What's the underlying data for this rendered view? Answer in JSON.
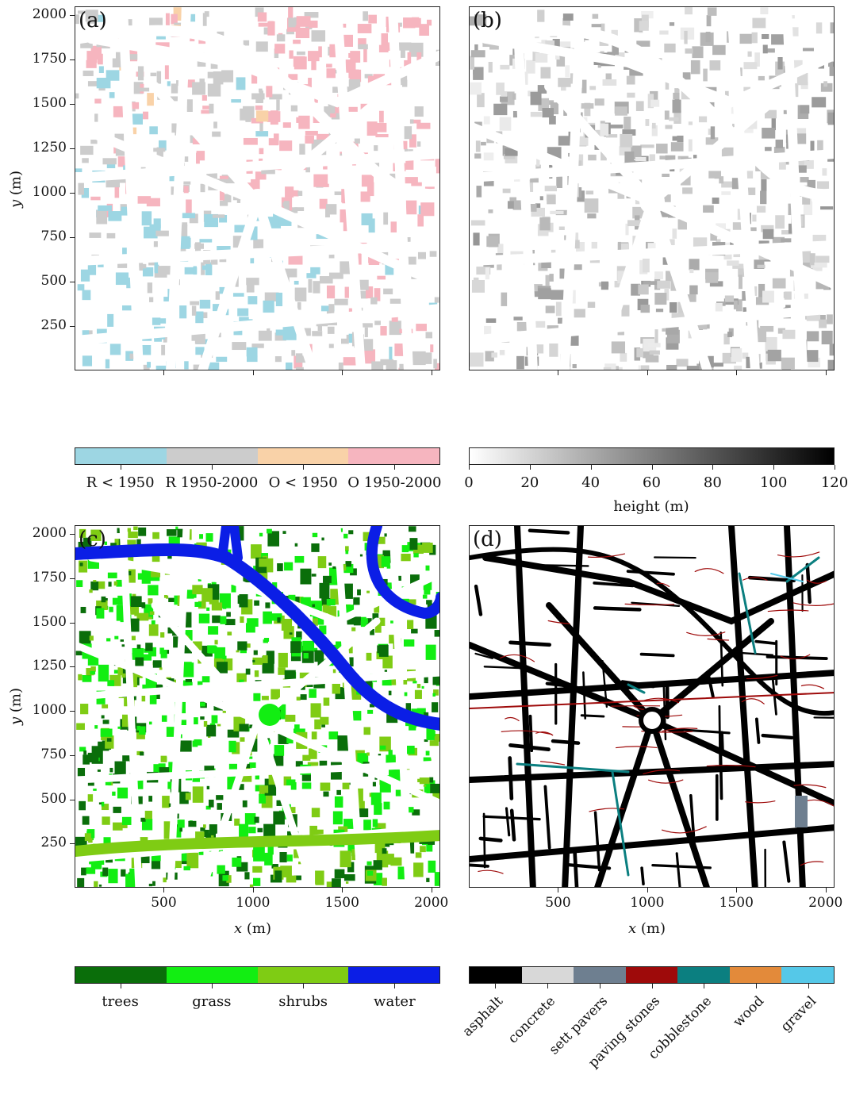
{
  "panels": {
    "a": {
      "label": "(a)",
      "ylabel_var": "y",
      "ylabel_unit": " (m)"
    },
    "b": {
      "label": "(b)"
    },
    "c": {
      "label": "(c)",
      "ylabel_var": "y",
      "ylabel_unit": " (m)",
      "xlabel_var": "x",
      "xlabel_unit": " (m)"
    },
    "d": {
      "label": "(d)",
      "xlabel_var": "x",
      "xlabel_unit": " (m)"
    }
  },
  "y_ticks": [
    "2000",
    "1750",
    "1500",
    "1250",
    "1000",
    "750",
    "500",
    "250"
  ],
  "x_ticks": [
    "500",
    "1000",
    "1500",
    "2000"
  ],
  "legend_a": {
    "labels": [
      "R < 1950",
      "R 1950-2000",
      "O < 1950",
      "O 1950-2000"
    ],
    "colors": [
      "#9dd6e3",
      "#cccccc",
      "#f9d2a8",
      "#f6b5bf"
    ]
  },
  "legend_b": {
    "ticks": [
      "0",
      "20",
      "40",
      "60",
      "80",
      "100",
      "120"
    ],
    "label": "height (m)",
    "range": [
      0,
      120
    ]
  },
  "legend_c": {
    "labels": [
      "trees",
      "grass",
      "shrubs",
      "water"
    ],
    "colors": [
      "#0a6e0a",
      "#12ee12",
      "#7fcc14",
      "#0b1ee6"
    ]
  },
  "legend_d": {
    "labels": [
      "asphalt",
      "concrete",
      "sett pavers",
      "paving stones",
      "cobblestone",
      "wood",
      "gravel"
    ],
    "colors": [
      "#000000",
      "#d8d8d8",
      "#6e7f90",
      "#9e0a0a",
      "#0b7f80",
      "#e38a3a",
      "#55c8e8"
    ]
  }
}
